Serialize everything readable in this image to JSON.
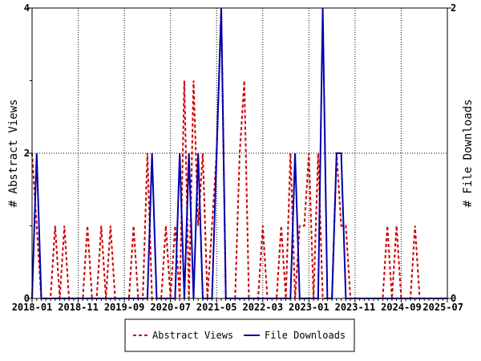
{
  "chart_data": {
    "type": "line",
    "xlabel": "",
    "ylabel_left": "# Abstract Views",
    "ylabel_right": "# File Downloads",
    "x_tick_labels": [
      "2018-01",
      "2018-11",
      "2019-09",
      "2020-07",
      "2021-05",
      "2022-03",
      "2023-01",
      "2023-11",
      "2024-09",
      "2025-07"
    ],
    "x_range": [
      "2018-01",
      "2025-07"
    ],
    "y_left_range": [
      0,
      4
    ],
    "y_right_range": [
      0,
      2
    ],
    "y_left_ticks": [
      0,
      2,
      4
    ],
    "y_right_ticks": [
      0,
      2
    ],
    "grid": true,
    "legend_position": "bottom",
    "series": [
      {
        "name": "Abstract Views",
        "axis": "left",
        "color": "#cc0000",
        "style": "dashed",
        "points": [
          [
            "2018-01",
            2
          ],
          [
            "2018-02",
            1
          ],
          [
            "2018-06",
            1
          ],
          [
            "2018-07",
            0
          ],
          [
            "2018-08",
            1
          ],
          [
            "2018-09",
            0
          ],
          [
            "2018-12",
            0
          ],
          [
            "2019-01",
            1
          ],
          [
            "2019-02",
            0
          ],
          [
            "2019-03",
            0
          ],
          [
            "2019-04",
            1
          ],
          [
            "2019-05",
            0
          ],
          [
            "2019-06",
            1
          ],
          [
            "2019-07",
            0
          ],
          [
            "2019-08",
            0
          ],
          [
            "2019-10",
            0
          ],
          [
            "2019-11",
            1
          ],
          [
            "2019-12",
            0
          ],
          [
            "2020-01",
            0
          ],
          [
            "2020-02",
            2
          ],
          [
            "2020-03",
            0
          ],
          [
            "2020-05",
            0
          ],
          [
            "2020-06",
            1
          ],
          [
            "2020-07",
            0
          ],
          [
            "2020-08",
            1
          ],
          [
            "2020-09",
            0
          ],
          [
            "2020-10",
            3
          ],
          [
            "2020-11",
            0
          ],
          [
            "2020-12",
            3
          ],
          [
            "2021-01",
            1
          ],
          [
            "2021-02",
            2
          ],
          [
            "2021-03",
            0
          ],
          [
            "2021-04",
            1
          ],
          [
            "2021-05",
            2
          ],
          [
            "2021-06",
            4
          ],
          [
            "2021-07",
            0
          ],
          [
            "2021-09",
            0
          ],
          [
            "2021-10",
            2
          ],
          [
            "2021-11",
            3
          ],
          [
            "2021-12",
            0
          ],
          [
            "2022-02",
            0
          ],
          [
            "2022-03",
            1
          ],
          [
            "2022-04",
            0
          ],
          [
            "2022-06",
            0
          ],
          [
            "2022-07",
            1
          ],
          [
            "2022-08",
            0
          ],
          [
            "2022-09",
            2
          ],
          [
            "2022-10",
            0
          ],
          [
            "2022-11",
            1
          ],
          [
            "2022-12",
            1
          ],
          [
            "2023-01",
            2
          ],
          [
            "2023-02",
            0
          ],
          [
            "2023-03",
            2
          ],
          [
            "2023-04",
            0
          ],
          [
            "2023-06",
            0
          ],
          [
            "2023-07",
            2
          ],
          [
            "2023-08",
            1
          ],
          [
            "2023-09",
            1
          ],
          [
            "2023-10",
            0
          ],
          [
            "2024-05",
            0
          ],
          [
            "2024-06",
            1
          ],
          [
            "2024-07",
            0
          ],
          [
            "2024-08",
            1
          ],
          [
            "2024-09",
            0
          ],
          [
            "2024-11",
            0
          ],
          [
            "2024-12",
            1
          ],
          [
            "2025-01",
            0
          ]
        ]
      },
      {
        "name": "File Downloads",
        "axis": "right",
        "color": "#0000aa",
        "style": "solid",
        "points": [
          [
            "2018-01",
            0
          ],
          [
            "2018-02",
            1
          ],
          [
            "2018-03",
            0
          ],
          [
            "2020-02",
            0
          ],
          [
            "2020-03",
            1
          ],
          [
            "2020-04",
            0
          ],
          [
            "2020-08",
            0
          ],
          [
            "2020-09",
            1
          ],
          [
            "2020-10",
            0
          ],
          [
            "2020-11",
            1
          ],
          [
            "2020-12",
            0
          ],
          [
            "2021-01",
            1
          ],
          [
            "2021-02",
            0
          ],
          [
            "2021-04",
            0
          ],
          [
            "2021-05",
            1
          ],
          [
            "2021-06",
            2
          ],
          [
            "2021-07",
            0
          ],
          [
            "2022-09",
            0
          ],
          [
            "2022-10",
            1
          ],
          [
            "2022-11",
            0
          ],
          [
            "2023-03",
            0
          ],
          [
            "2023-04",
            2
          ],
          [
            "2023-05",
            0
          ],
          [
            "2023-06",
            0
          ],
          [
            "2023-07",
            1
          ],
          [
            "2023-08",
            1
          ],
          [
            "2023-09",
            0
          ]
        ]
      }
    ]
  }
}
